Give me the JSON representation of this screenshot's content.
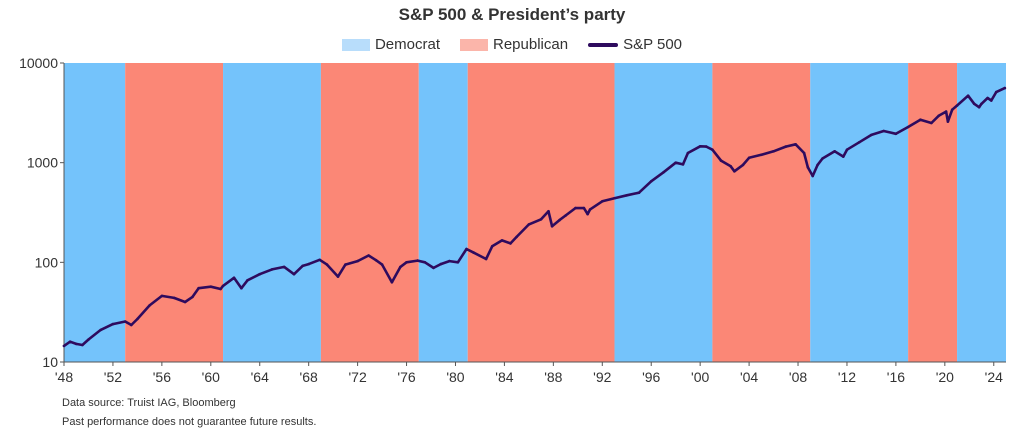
{
  "colors": {
    "democrat": "#74c3fb",
    "republican": "#fb8776",
    "democrat_legend": "#b8ddfb",
    "republican_legend": "#fbb5aa",
    "line": "#2e0b5e"
  },
  "notes": {
    "source": "Data source: Truist IAG, Bloomberg",
    "disclaimer": "Past performance does not guarantee future results."
  },
  "chart_data": {
    "type": "line",
    "title": "S&P 500 & President’s party",
    "legend": [
      "Democrat",
      "Republican",
      "S&P 500"
    ],
    "legend_position": "top-center",
    "y_scale": "log",
    "ylim": [
      10,
      10000
    ],
    "y_ticks": [
      {
        "value": 10,
        "label": "10"
      },
      {
        "value": 100,
        "label": "100"
      },
      {
        "value": 1000,
        "label": "1000"
      },
      {
        "value": 10000,
        "label": "10000"
      }
    ],
    "xlim": [
      1948,
      2025
    ],
    "x_ticks": [
      {
        "value": 1948,
        "label": "'48"
      },
      {
        "value": 1952,
        "label": "'52"
      },
      {
        "value": 1956,
        "label": "'56"
      },
      {
        "value": 1960,
        "label": "'60"
      },
      {
        "value": 1964,
        "label": "'64"
      },
      {
        "value": 1968,
        "label": "'68"
      },
      {
        "value": 1972,
        "label": "'72"
      },
      {
        "value": 1976,
        "label": "'76"
      },
      {
        "value": 1980,
        "label": "'80"
      },
      {
        "value": 1984,
        "label": "'84"
      },
      {
        "value": 1988,
        "label": "'88"
      },
      {
        "value": 1992,
        "label": "'92"
      },
      {
        "value": 1996,
        "label": "'96"
      },
      {
        "value": 2000,
        "label": "'00"
      },
      {
        "value": 2004,
        "label": "'04"
      },
      {
        "value": 2008,
        "label": "'08"
      },
      {
        "value": 2012,
        "label": "'12"
      },
      {
        "value": 2016,
        "label": "'16"
      },
      {
        "value": 2020,
        "label": "'20"
      },
      {
        "value": 2024,
        "label": "'24"
      }
    ],
    "grid": false,
    "party_periods": [
      {
        "party": "Democrat",
        "start": 1948,
        "end": 1953
      },
      {
        "party": "Republican",
        "start": 1953,
        "end": 1961
      },
      {
        "party": "Democrat",
        "start": 1961,
        "end": 1969
      },
      {
        "party": "Republican",
        "start": 1969,
        "end": 1977
      },
      {
        "party": "Democrat",
        "start": 1977,
        "end": 1981
      },
      {
        "party": "Republican",
        "start": 1981,
        "end": 1993
      },
      {
        "party": "Democrat",
        "start": 1993,
        "end": 2001
      },
      {
        "party": "Republican",
        "start": 2001,
        "end": 2009
      },
      {
        "party": "Democrat",
        "start": 2009,
        "end": 2017
      },
      {
        "party": "Republican",
        "start": 2017,
        "end": 2021
      },
      {
        "party": "Democrat",
        "start": 2021,
        "end": 2025
      }
    ],
    "series": [
      {
        "name": "S&P 500",
        "points": [
          [
            1948.0,
            14.5
          ],
          [
            1948.5,
            16.0
          ],
          [
            1949.0,
            15.2
          ],
          [
            1949.5,
            14.8
          ],
          [
            1950.0,
            16.8
          ],
          [
            1951.0,
            21.0
          ],
          [
            1952.0,
            24.0
          ],
          [
            1953.0,
            25.5
          ],
          [
            1953.5,
            23.5
          ],
          [
            1954.0,
            27.0
          ],
          [
            1955.0,
            37.0
          ],
          [
            1956.0,
            46.0
          ],
          [
            1957.0,
            44.0
          ],
          [
            1957.9,
            40.0
          ],
          [
            1958.5,
            45.0
          ],
          [
            1959.0,
            55.0
          ],
          [
            1960.0,
            57.0
          ],
          [
            1960.8,
            54.0
          ],
          [
            1961.0,
            58.0
          ],
          [
            1961.9,
            70.0
          ],
          [
            1962.5,
            55.0
          ],
          [
            1963.0,
            66.0
          ],
          [
            1964.0,
            76.0
          ],
          [
            1965.0,
            85.0
          ],
          [
            1966.0,
            90.0
          ],
          [
            1966.8,
            76.0
          ],
          [
            1967.5,
            92.0
          ],
          [
            1968.0,
            96.0
          ],
          [
            1968.9,
            106.0
          ],
          [
            1969.5,
            95.0
          ],
          [
            1970.4,
            72.0
          ],
          [
            1971.0,
            95.0
          ],
          [
            1972.0,
            103.0
          ],
          [
            1972.9,
            117.0
          ],
          [
            1973.5,
            105.0
          ],
          [
            1974.0,
            95.0
          ],
          [
            1974.8,
            63.0
          ],
          [
            1975.5,
            90.0
          ],
          [
            1976.0,
            100.0
          ],
          [
            1976.9,
            104.0
          ],
          [
            1977.5,
            100.0
          ],
          [
            1978.2,
            88.0
          ],
          [
            1978.8,
            96.0
          ],
          [
            1979.5,
            103.0
          ],
          [
            1980.2,
            100.0
          ],
          [
            1980.9,
            136.0
          ],
          [
            1981.5,
            125.0
          ],
          [
            1982.5,
            108.0
          ],
          [
            1983.0,
            145.0
          ],
          [
            1983.8,
            166.0
          ],
          [
            1984.5,
            155.0
          ],
          [
            1985.0,
            180.0
          ],
          [
            1986.0,
            240.0
          ],
          [
            1987.0,
            270.0
          ],
          [
            1987.6,
            325.0
          ],
          [
            1987.9,
            230.0
          ],
          [
            1988.5,
            265.0
          ],
          [
            1989.0,
            295.0
          ],
          [
            1989.8,
            350.0
          ],
          [
            1990.5,
            350.0
          ],
          [
            1990.8,
            305.0
          ],
          [
            1991.0,
            340.0
          ],
          [
            1992.0,
            410.0
          ],
          [
            1993.0,
            440.0
          ],
          [
            1994.0,
            470.0
          ],
          [
            1995.0,
            500.0
          ],
          [
            1996.0,
            650.0
          ],
          [
            1997.0,
            800.0
          ],
          [
            1998.0,
            1000.0
          ],
          [
            1998.6,
            960.0
          ],
          [
            1999.0,
            1250.0
          ],
          [
            2000.0,
            1460.0
          ],
          [
            2000.5,
            1450.0
          ],
          [
            2001.0,
            1350.0
          ],
          [
            2001.7,
            1050.0
          ],
          [
            2002.5,
            920.0
          ],
          [
            2002.8,
            820.0
          ],
          [
            2003.5,
            950.0
          ],
          [
            2004.0,
            1120.0
          ],
          [
            2005.0,
            1200.0
          ],
          [
            2006.0,
            1300.0
          ],
          [
            2007.0,
            1450.0
          ],
          [
            2007.8,
            1530.0
          ],
          [
            2008.5,
            1250.0
          ],
          [
            2008.8,
            900.0
          ],
          [
            2009.2,
            735.0
          ],
          [
            2009.6,
            950.0
          ],
          [
            2010.0,
            1100.0
          ],
          [
            2011.0,
            1300.0
          ],
          [
            2011.7,
            1150.0
          ],
          [
            2012.0,
            1350.0
          ],
          [
            2013.0,
            1600.0
          ],
          [
            2014.0,
            1900.0
          ],
          [
            2015.0,
            2080.0
          ],
          [
            2016.0,
            1950.0
          ],
          [
            2017.0,
            2280.0
          ],
          [
            2018.0,
            2700.0
          ],
          [
            2018.9,
            2500.0
          ],
          [
            2019.5,
            2950.0
          ],
          [
            2020.1,
            3250.0
          ],
          [
            2020.25,
            2580.0
          ],
          [
            2020.6,
            3400.0
          ],
          [
            2021.0,
            3750.0
          ],
          [
            2021.9,
            4700.0
          ],
          [
            2022.4,
            3900.0
          ],
          [
            2022.8,
            3600.0
          ],
          [
            2023.0,
            3900.0
          ],
          [
            2023.5,
            4450.0
          ],
          [
            2023.8,
            4200.0
          ],
          [
            2024.2,
            5100.0
          ],
          [
            2024.9,
            5600.0
          ]
        ]
      }
    ]
  }
}
